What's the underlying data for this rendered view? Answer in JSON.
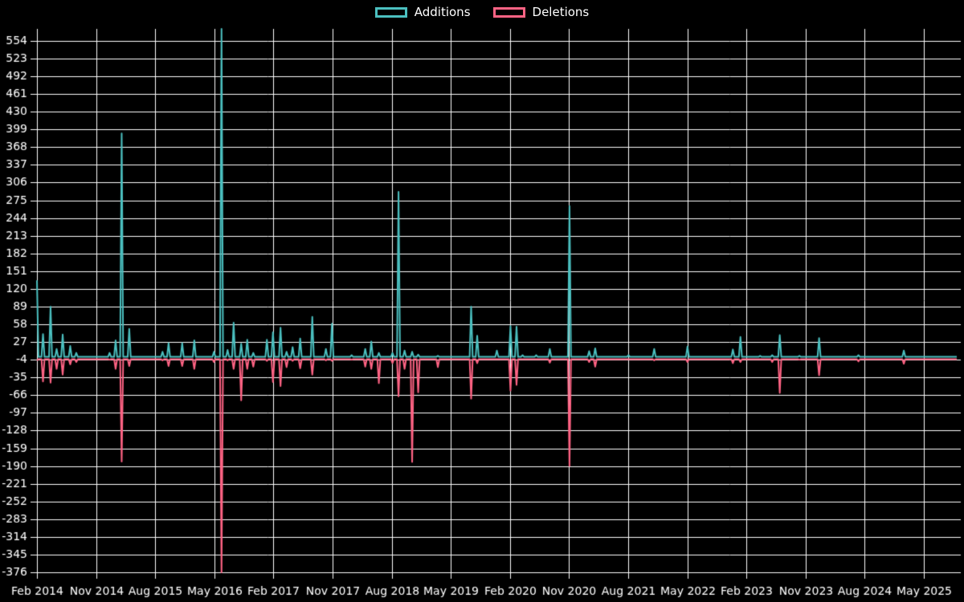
{
  "page": {
    "background": "#000000",
    "text_color": "#ffffff",
    "grid_color": "#ffffff"
  },
  "legend": {
    "position": "top",
    "items": [
      {
        "label": "Additions",
        "color": "#4bc0c0"
      },
      {
        "label": "Deletions",
        "color": "#ff6384"
      }
    ]
  },
  "chart_data": {
    "type": "line",
    "title": "",
    "xlabel": "",
    "ylabel": "",
    "grid": true,
    "legend_position": "top",
    "background": "#000000",
    "series": [
      {
        "name": "Additions",
        "color": "#4bc0c0",
        "sign": "positive"
      },
      {
        "name": "Deletions",
        "color": "#ff6384",
        "sign": "negative"
      }
    ],
    "x_axis": {
      "start": "Feb 2014",
      "end": "Oct 2025",
      "tick_interval_months": 9,
      "total_months": 140,
      "cadence": "weekly",
      "tick_labels": [
        "Feb 2014",
        "Nov 2014",
        "Aug 2015",
        "May 2016",
        "Feb 2017",
        "Nov 2017",
        "Aug 2018",
        "May 2019",
        "Feb 2020",
        "Nov 2020",
        "Aug 2021",
        "May 2022",
        "Feb 2023",
        "Nov 2023",
        "Aug 2024",
        "May 2025"
      ]
    },
    "y_axis": {
      "min": -376,
      "max": 575,
      "tick_step": 31,
      "tick_labels": [
        554,
        523,
        492,
        461,
        430,
        399,
        368,
        337,
        306,
        275,
        244,
        213,
        182,
        151,
        120,
        89,
        58,
        27,
        -4,
        -35,
        -66,
        -97,
        -128,
        -159,
        -190,
        -221,
        -252,
        -283,
        -314,
        -345,
        -376
      ]
    },
    "baseline": {
      "additions": 1,
      "deletions": -3
    },
    "points": [
      {
        "date": "2014-02",
        "additions": 135,
        "deletions": -5
      },
      {
        "date": "2014-03",
        "additions": 41,
        "deletions": -42
      },
      {
        "date": "2014-04",
        "additions": 89,
        "deletions": -44
      },
      {
        "date": "2014-05",
        "additions": 15,
        "deletions": -20
      },
      {
        "date": "2014-06",
        "additions": 40,
        "deletions": -30
      },
      {
        "date": "2014-07",
        "additions": 20,
        "deletions": -12
      },
      {
        "date": "2014-08",
        "additions": 8,
        "deletions": -8
      },
      {
        "date": "2015-01",
        "additions": 8,
        "deletions": -4
      },
      {
        "date": "2015-02",
        "additions": 30,
        "deletions": -20
      },
      {
        "date": "2015-03",
        "additions": 392,
        "deletions": -182
      },
      {
        "date": "2015-04",
        "additions": 50,
        "deletions": -15
      },
      {
        "date": "2015-09",
        "additions": 10,
        "deletions": -5
      },
      {
        "date": "2015-10",
        "additions": 25,
        "deletions": -15
      },
      {
        "date": "2015-12",
        "additions": 25,
        "deletions": -15
      },
      {
        "date": "2016-02",
        "additions": 30,
        "deletions": -20
      },
      {
        "date": "2016-05",
        "additions": 10,
        "deletions": -8
      },
      {
        "date": "2016-06",
        "additions": 575,
        "deletions": -376
      },
      {
        "date": "2016-07",
        "additions": 13,
        "deletions": -5
      },
      {
        "date": "2016-08",
        "additions": 61,
        "deletions": -20
      },
      {
        "date": "2016-09",
        "additions": 24,
        "deletions": -75
      },
      {
        "date": "2016-10",
        "additions": 31,
        "deletions": -20
      },
      {
        "date": "2016-11",
        "additions": 8,
        "deletions": -16
      },
      {
        "date": "2017-01",
        "additions": 31,
        "deletions": -6
      },
      {
        "date": "2017-02",
        "additions": 44,
        "deletions": -43
      },
      {
        "date": "2017-03",
        "additions": 52,
        "deletions": -50
      },
      {
        "date": "2017-04",
        "additions": 10,
        "deletions": -17
      },
      {
        "date": "2017-05",
        "additions": 18,
        "deletions": -6
      },
      {
        "date": "2017-06",
        "additions": 33,
        "deletions": -19
      },
      {
        "date": "2017-08",
        "additions": 71,
        "deletions": -30
      },
      {
        "date": "2017-10",
        "additions": 15,
        "deletions": -5
      },
      {
        "date": "2017-11",
        "additions": 59,
        "deletions": -6
      },
      {
        "date": "2018-02",
        "additions": 4,
        "deletions": -4
      },
      {
        "date": "2018-04",
        "additions": 15,
        "deletions": -16
      },
      {
        "date": "2018-05",
        "additions": 28,
        "deletions": -20
      },
      {
        "date": "2018-06",
        "additions": 8,
        "deletions": -45
      },
      {
        "date": "2018-08",
        "additions": 8,
        "deletions": -10
      },
      {
        "date": "2018-09",
        "additions": 290,
        "deletions": -68
      },
      {
        "date": "2018-10",
        "additions": 12,
        "deletions": -20
      },
      {
        "date": "2018-11",
        "additions": 10,
        "deletions": -183
      },
      {
        "date": "2018-12",
        "additions": 5,
        "deletions": -61
      },
      {
        "date": "2019-03",
        "additions": 3,
        "deletions": -17
      },
      {
        "date": "2019-08",
        "additions": 89,
        "deletions": -72
      },
      {
        "date": "2019-09",
        "additions": 38,
        "deletions": -10
      },
      {
        "date": "2019-12",
        "additions": 12,
        "deletions": -3
      },
      {
        "date": "2020-02",
        "additions": 55,
        "deletions": -58
      },
      {
        "date": "2020-03",
        "additions": 54,
        "deletions": -48
      },
      {
        "date": "2020-04",
        "additions": 4,
        "deletions": -3
      },
      {
        "date": "2020-06",
        "additions": 4,
        "deletions": -3
      },
      {
        "date": "2020-08",
        "additions": 15,
        "deletions": -9
      },
      {
        "date": "2020-11",
        "additions": 265,
        "deletions": -190
      },
      {
        "date": "2021-02",
        "additions": 11,
        "deletions": -8
      },
      {
        "date": "2021-03",
        "additions": 16,
        "deletions": -16
      },
      {
        "date": "2021-08",
        "additions": 4,
        "deletions": -3
      },
      {
        "date": "2021-12",
        "additions": 15,
        "deletions": -5
      },
      {
        "date": "2022-05",
        "additions": 19,
        "deletions": -8
      },
      {
        "date": "2022-12",
        "additions": 14,
        "deletions": -10
      },
      {
        "date": "2023-01",
        "additions": 36,
        "deletions": -8
      },
      {
        "date": "2023-04",
        "additions": 3,
        "deletions": -3
      },
      {
        "date": "2023-06",
        "additions": 4,
        "deletions": -8
      },
      {
        "date": "2023-07",
        "additions": 39,
        "deletions": -62
      },
      {
        "date": "2023-10",
        "additions": 3,
        "deletions": -4
      },
      {
        "date": "2024-01",
        "additions": 34,
        "deletions": -31
      },
      {
        "date": "2024-07",
        "additions": 4,
        "deletions": -7
      },
      {
        "date": "2025-02",
        "additions": 12,
        "deletions": -11
      }
    ]
  }
}
